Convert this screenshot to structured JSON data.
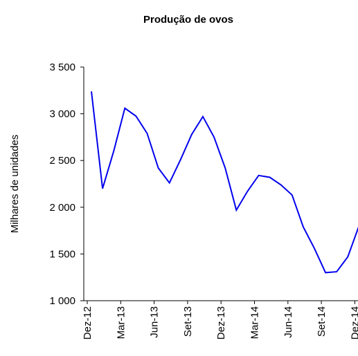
{
  "chart_data": {
    "type": "line",
    "title": "Produção de ovos",
    "y_label": "Milhares de unidades",
    "categories": [
      "Dez-12",
      null,
      null,
      "Mar-13",
      null,
      null,
      "Jun-13",
      null,
      null,
      "Set-13",
      null,
      null,
      "Dez-13",
      null,
      null,
      "Mar-14",
      null,
      null,
      "Jun-14",
      null,
      null,
      "Set-14",
      null,
      null,
      "Dez-14"
    ],
    "values": [
      3240,
      2200,
      2600,
      3060,
      2975,
      2790,
      2420,
      2260,
      2510,
      2780,
      2970,
      2750,
      2420,
      1970,
      2170,
      2340,
      2320,
      2240,
      2130,
      1790,
      1560,
      1300,
      1310,
      1470,
      1800
    ],
    "color": "#0000ee",
    "ylim": [
      1000,
      3500
    ],
    "yticks": [
      {
        "value": 1000,
        "label": "1 000"
      },
      {
        "value": 1500,
        "label": "1 500"
      },
      {
        "value": 2000,
        "label": "2 000"
      },
      {
        "value": 2500,
        "label": "2 500"
      },
      {
        "value": 3000,
        "label": "3 000"
      },
      {
        "value": 3500,
        "label": "3 500"
      }
    ]
  }
}
